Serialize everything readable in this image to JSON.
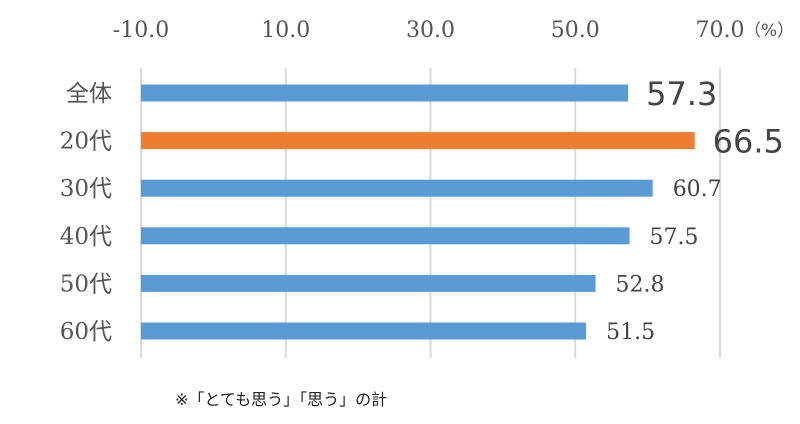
{
  "chart_data": {
    "type": "bar",
    "orientation": "horizontal",
    "categories": [
      "全体",
      "20代",
      "30代",
      "40代",
      "50代",
      "60代"
    ],
    "values": [
      57.3,
      66.5,
      60.7,
      57.5,
      52.8,
      51.5
    ],
    "value_labels": [
      "57.3",
      "66.5",
      "60.7",
      "57.5",
      "52.8",
      "51.5"
    ],
    "highlight": [
      true,
      true,
      false,
      false,
      false,
      false
    ],
    "bar_colors": [
      "#5B9BD5",
      "#ED7D31",
      "#5B9BD5",
      "#5B9BD5",
      "#5B9BD5",
      "#5B9BD5"
    ],
    "label_colors": [
      "#FF0000",
      "#FF0000",
      "#444444",
      "#444444",
      "#444444",
      "#444444"
    ],
    "xlim": [
      -10,
      70
    ],
    "x_ticks": [
      -10,
      10,
      30,
      50,
      70
    ],
    "x_tick_labels": [
      "-10.0",
      "10.0",
      "30.0",
      "50.0",
      "70.0"
    ],
    "unit": "（%）",
    "axis_position": "top",
    "grid": true,
    "legend": "none"
  },
  "note": "※「とても思う」「思う」の計"
}
